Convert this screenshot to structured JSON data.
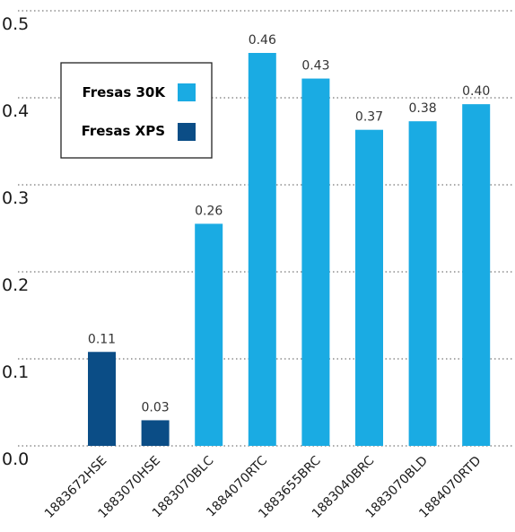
{
  "chart_data": {
    "type": "bar",
    "categories": [
      "1883672HSE",
      "1883070HSE",
      "1883070BLC",
      "1884070RTC",
      "1883655BRC",
      "1883040BRC",
      "1883070BLD",
      "1884070RTD"
    ],
    "values": [
      0.11,
      0.03,
      0.26,
      0.46,
      0.43,
      0.37,
      0.38,
      0.4
    ],
    "value_labels": [
      "0.11",
      "0.03",
      "0.26",
      "0.46",
      "0.43",
      "0.37",
      "0.38",
      "0.40"
    ],
    "series_of_category": [
      "Fresas XPS",
      "Fresas XPS",
      "Fresas 30K",
      "Fresas 30K",
      "Fresas 30K",
      "Fresas 30K",
      "Fresas 30K",
      "Fresas 30K"
    ],
    "legend": [
      {
        "name": "Fresas 30K",
        "color": "#1aabe3"
      },
      {
        "name": "Fresas XPS",
        "color": "#0b4d86"
      }
    ],
    "y_ticks": [
      "0.5",
      "0.4",
      "0.3",
      "0.2",
      "0.1",
      "0.0"
    ],
    "ylim": [
      0,
      0.5
    ],
    "grid": "dotted horizontal",
    "legend_position": "top-left",
    "title": "",
    "xlabel": "",
    "ylabel": ""
  }
}
